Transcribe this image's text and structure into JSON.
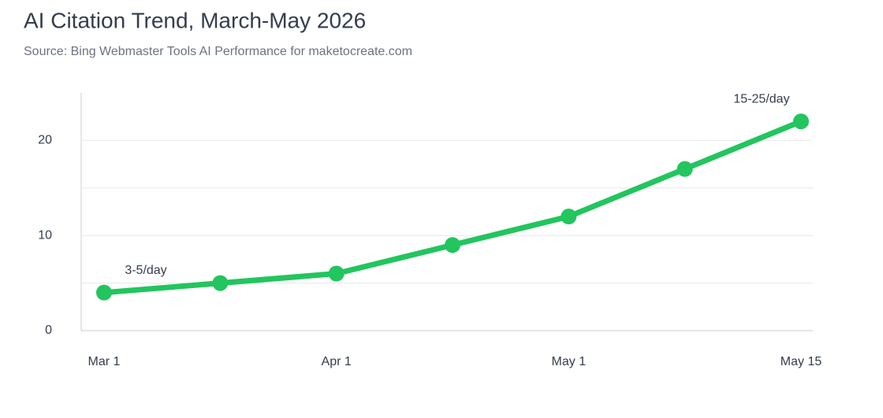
{
  "chart_data": {
    "type": "line",
    "title": "AI Citation Trend, March-May 2026",
    "subtitle": "Source: Bing Webmaster Tools AI Performance for maketocreate.com",
    "categories": [
      "Mar 1",
      null,
      "Apr 1",
      null,
      "May 1",
      null,
      "May 15"
    ],
    "values": [
      4,
      5,
      6,
      9,
      12,
      17,
      22
    ],
    "color": "#22c55e",
    "ylim": [
      0,
      25
    ],
    "yticks": [
      0,
      10,
      20
    ],
    "y_minor_gridlines": [
      5,
      15
    ],
    "grid": true,
    "annotations": [
      {
        "text": "3-5/day",
        "point": 0
      },
      {
        "text": "15-25/day",
        "point": 6
      }
    ]
  }
}
